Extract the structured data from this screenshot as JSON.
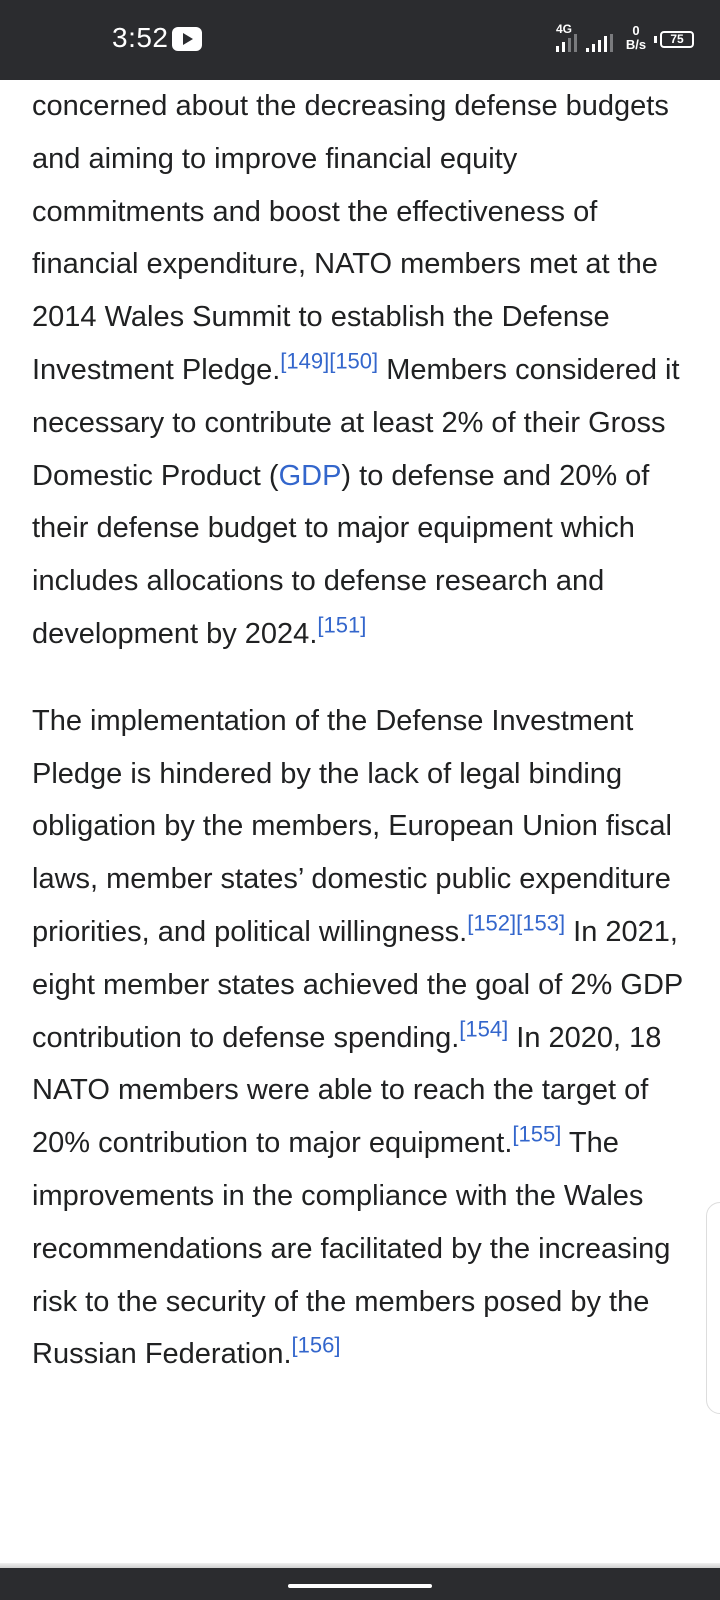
{
  "status_bar": {
    "time": "3:52",
    "network": "4G",
    "data_speed_value": "0",
    "data_speed_unit": "B/s",
    "battery": "75"
  },
  "article": {
    "p1": {
      "t1": "concerned about the decreasing defense budgets and aiming to improve financial equity commitments and boost the effectiveness of financial expenditure, NATO members met at the 2014 Wales Summit to establish the Defense Investment Pledge.",
      "r1": "[149]",
      "r2": "[150]",
      "t2": " Members considered it necessary to contribute at least 2% of their Gross Domestic Product (",
      "link_gdp": "GDP",
      "t3": ") to defense and 20% of their defense budget to major equipment which includes allocations to defense research and development by 2024.",
      "r3": "[151]"
    },
    "p2": {
      "t1": "The implementation of the Defense Investment Pledge is hindered by the lack of legal binding obligation by the members, European Union fiscal laws, member states’ domestic public expenditure priorities, and political willingness.",
      "r1": "[152]",
      "r2": "[153]",
      "t2": " In 2021, eight member states achieved the goal of 2% GDP contribution to defense spending.",
      "r3": "[154]",
      "t3": " In 2020, 18 NATO members were able to reach the target of 20% contribution to major equipment.",
      "r4": "[155]",
      "t4": " The improvements in the compliance with the Wales recommendations are facilitated by the increasing risk to the security of the members posed by the Russian Federation.",
      "r5": "[156]"
    }
  },
  "icons": {
    "play": "play-icon",
    "signal": "signal-icon",
    "battery": "battery-icon"
  },
  "colors": {
    "status_bar_bg": "#2b2c2f",
    "link": "#3366cc",
    "text": "#202122"
  }
}
